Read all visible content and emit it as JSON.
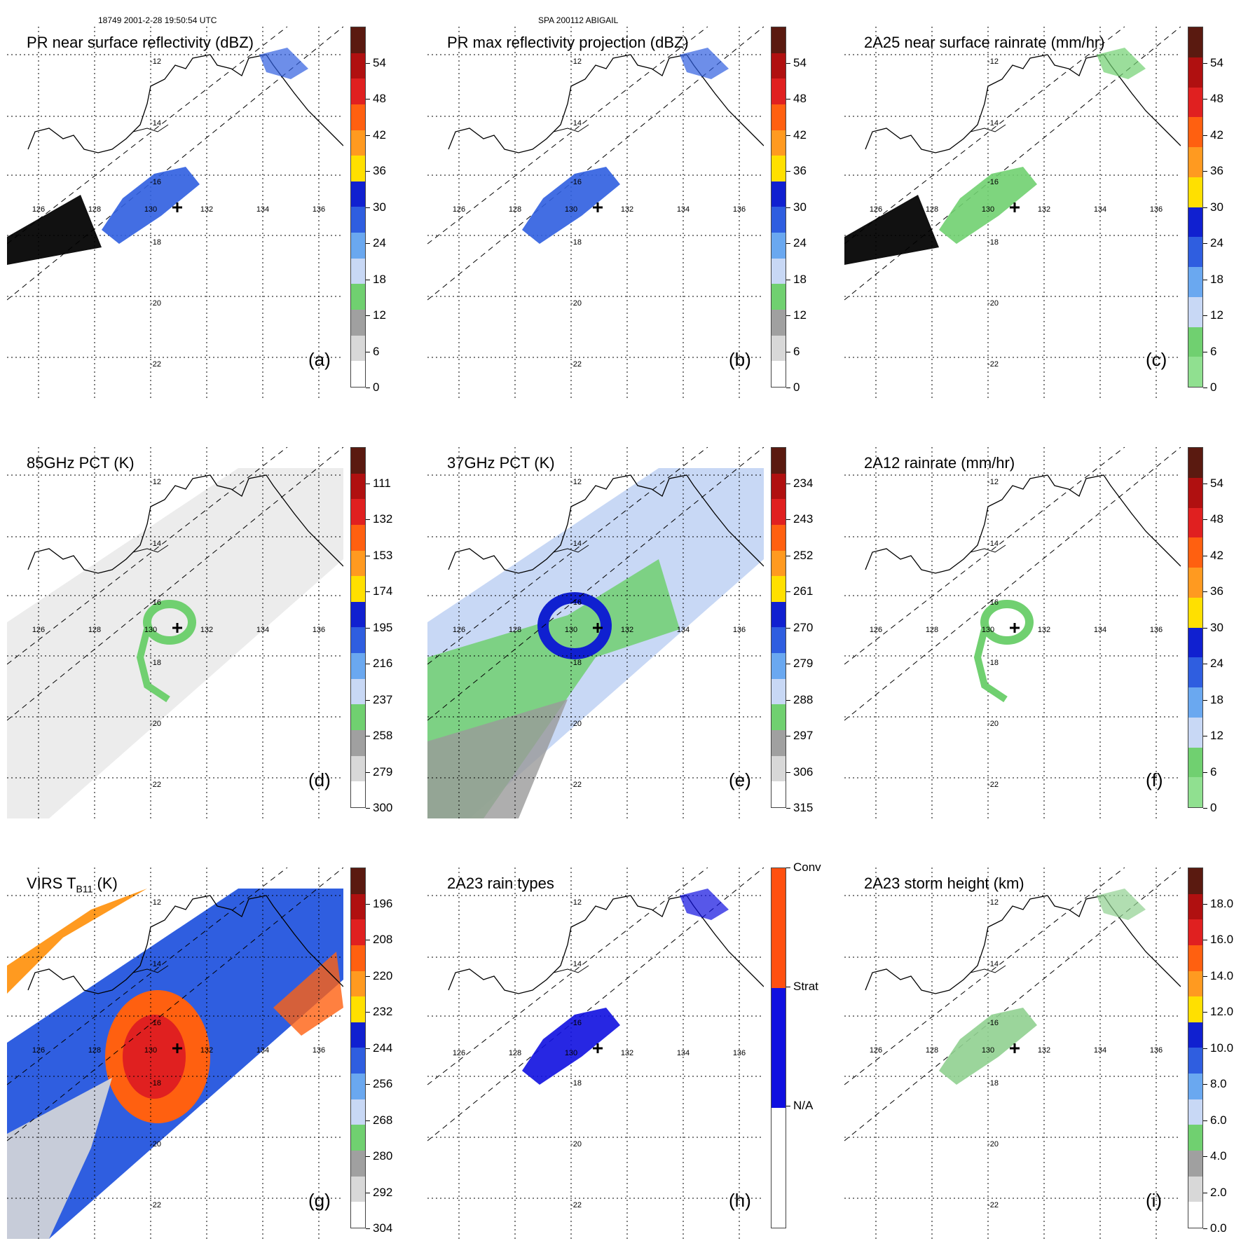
{
  "header": {
    "orbit_time": "18749 2001-2-28 19:50:54 UTC",
    "storm": "SPA 200112 ABIGAIL"
  },
  "grid": {
    "lon_labels": [
      "126",
      "128",
      "130",
      "132",
      "134",
      "136"
    ],
    "lat_labels": [
      "-12",
      "-14",
      "-16",
      "-18",
      "-20",
      "-22"
    ]
  },
  "panels": [
    {
      "id": "a",
      "title": "PR near surface reflectivity (dBZ)",
      "label": "(a)",
      "ticks": [
        "54",
        "48",
        "42",
        "36",
        "30",
        "24",
        "18",
        "12",
        "6",
        "0"
      ],
      "colors": [
        "#5a1a10",
        "#b01010",
        "#e02020",
        "#ff6010",
        "#ff9a20",
        "#ffe000",
        "#1020d0",
        "#2f5ee0",
        "#6aa8f0",
        "#c8d8f5",
        "#70d070",
        "#a0a0a0",
        "#d8d8d8",
        "#ffffff"
      ]
    },
    {
      "id": "b",
      "title": "PR max reflectivity projection (dBZ)",
      "label": "(b)",
      "ticks": [
        "54",
        "48",
        "42",
        "36",
        "30",
        "24",
        "18",
        "12",
        "6",
        "0"
      ],
      "colors": [
        "#5a1a10",
        "#b01010",
        "#e02020",
        "#ff6010",
        "#ff9a20",
        "#ffe000",
        "#1020d0",
        "#2f5ee0",
        "#6aa8f0",
        "#c8d8f5",
        "#70d070",
        "#a0a0a0",
        "#d8d8d8",
        "#ffffff"
      ]
    },
    {
      "id": "c",
      "title": "2A25 near surface rainrate (mm/hr)",
      "label": "(c)",
      "ticks": [
        "54",
        "48",
        "42",
        "36",
        "30",
        "24",
        "18",
        "12",
        "6",
        "0"
      ],
      "colors": [
        "#5a1a10",
        "#b01010",
        "#e02020",
        "#ff6010",
        "#ff9a20",
        "#ffe000",
        "#1020d0",
        "#2f5ee0",
        "#6aa8f0",
        "#c8d8f5",
        "#70d070",
        "#90e090"
      ]
    },
    {
      "id": "d",
      "title": "85GHz PCT (K)",
      "label": "(d)",
      "ticks": [
        "111",
        "132",
        "153",
        "174",
        "195",
        "216",
        "237",
        "258",
        "279",
        "300"
      ],
      "colors": [
        "#5a1a10",
        "#b01010",
        "#e02020",
        "#ff6010",
        "#ff9a20",
        "#ffe000",
        "#1020d0",
        "#2f5ee0",
        "#6aa8f0",
        "#c8d8f5",
        "#70d070",
        "#a0a0a0",
        "#d8d8d8",
        "#ffffff"
      ]
    },
    {
      "id": "e",
      "title": "37GHz PCT (K)",
      "label": "(e)",
      "ticks": [
        "234",
        "243",
        "252",
        "261",
        "270",
        "279",
        "288",
        "297",
        "306",
        "315"
      ],
      "colors": [
        "#5a1a10",
        "#b01010",
        "#e02020",
        "#ff6010",
        "#ff9a20",
        "#ffe000",
        "#1020d0",
        "#2f5ee0",
        "#6aa8f0",
        "#c8d8f5",
        "#70d070",
        "#a0a0a0",
        "#d8d8d8",
        "#ffffff"
      ]
    },
    {
      "id": "f",
      "title": "2A12 rainrate (mm/hr)",
      "label": "(f)",
      "ticks": [
        "54",
        "48",
        "42",
        "36",
        "30",
        "24",
        "18",
        "12",
        "6",
        "0"
      ],
      "colors": [
        "#5a1a10",
        "#b01010",
        "#e02020",
        "#ff6010",
        "#ff9a20",
        "#ffe000",
        "#1020d0",
        "#2f5ee0",
        "#6aa8f0",
        "#c8d8f5",
        "#70d070",
        "#90e090"
      ]
    },
    {
      "id": "g",
      "title": "VIRS T",
      "title_sub": "B11",
      "title_tail": " (K)",
      "label": "(g)",
      "ticks": [
        "196",
        "208",
        "220",
        "232",
        "244",
        "256",
        "268",
        "280",
        "292",
        "304"
      ],
      "colors": [
        "#5a1a10",
        "#b01010",
        "#e02020",
        "#ff6010",
        "#ff9a20",
        "#ffe000",
        "#1020d0",
        "#2f5ee0",
        "#6aa8f0",
        "#c8d8f5",
        "#70d070",
        "#a0a0a0",
        "#d8d8d8",
        "#ffffff"
      ]
    },
    {
      "id": "h",
      "title": "2A23 rain types",
      "label": "(h)",
      "ticks": [
        "Conv",
        "Strat",
        "N/A"
      ],
      "colors": [
        "#ff5010",
        "#1010e0",
        "#ffffff"
      ]
    },
    {
      "id": "i",
      "title": "2A23 storm height (km)",
      "label": "(i)",
      "ticks": [
        "18.0",
        "16.0",
        "14.0",
        "12.0",
        "10.0",
        "8.0",
        "6.0",
        "4.0",
        "2.0",
        "0.0"
      ],
      "colors": [
        "#5a1a10",
        "#b01010",
        "#e02020",
        "#ff6010",
        "#ff9a20",
        "#ffe000",
        "#1020d0",
        "#2f5ee0",
        "#6aa8f0",
        "#c8d8f5",
        "#70d070",
        "#a0a0a0",
        "#d8d8d8",
        "#ffffff"
      ]
    }
  ]
}
